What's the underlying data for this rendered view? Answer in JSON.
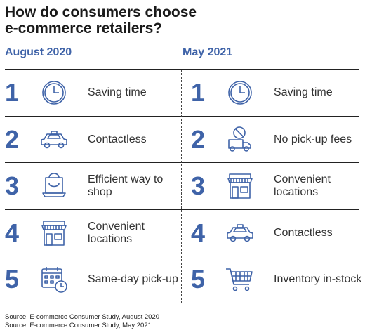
{
  "title_line1": "How do consumers choose",
  "title_line2": "e-commerce retailers?",
  "columns": [
    {
      "heading": "August 2020",
      "items": [
        {
          "rank": "1",
          "label": "Saving time",
          "icon": "clock-icon"
        },
        {
          "rank": "2",
          "label": "Contactless",
          "icon": "taxi-icon"
        },
        {
          "rank": "3",
          "label": "Efficient way to shop",
          "icon": "shopping-bag-laptop-icon"
        },
        {
          "rank": "4",
          "label": "Convenient locations",
          "icon": "storefront-icon"
        },
        {
          "rank": "5",
          "label": "Same-day pick-up",
          "icon": "calendar-clock-icon"
        }
      ]
    },
    {
      "heading": "May 2021",
      "items": [
        {
          "rank": "1",
          "label": "Saving time",
          "icon": "clock-icon"
        },
        {
          "rank": "2",
          "label": "No pick-up fees",
          "icon": "delivery-truck-no-fee-icon"
        },
        {
          "rank": "3",
          "label": "Convenient locations",
          "icon": "storefront-icon"
        },
        {
          "rank": "4",
          "label": "Contactless",
          "icon": "taxi-icon"
        },
        {
          "rank": "5",
          "label": "Inventory in-stock",
          "icon": "shopping-cart-icon"
        }
      ]
    }
  ],
  "sources": [
    "Source: E-commerce Consumer Study, August 2020",
    "Source: E-commerce Consumer Study, May 2021"
  ],
  "colors": {
    "accent": "#3f63a8",
    "text": "#333333"
  }
}
